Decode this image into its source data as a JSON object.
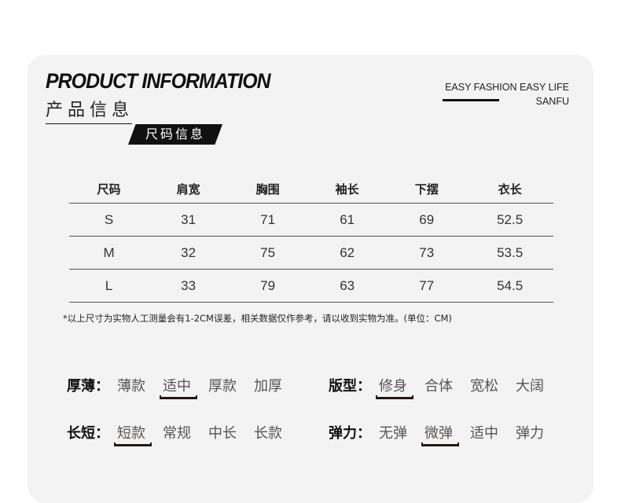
{
  "header": {
    "title_en": "PRODUCT INFORMATION",
    "title_cn": "产品信息",
    "section_tag": "尺码信息",
    "slogan_line1": "EASY FASHION EASY LIFE",
    "slogan_line2": "SANFU"
  },
  "size_table": {
    "columns": [
      "尺码",
      "肩宽",
      "胸围",
      "袖长",
      "下摆",
      "衣长"
    ],
    "rows": [
      [
        "S",
        "31",
        "71",
        "61",
        "69",
        "52.5"
      ],
      [
        "M",
        "32",
        "75",
        "62",
        "73",
        "53.5"
      ],
      [
        "L",
        "33",
        "79",
        "63",
        "77",
        "54.5"
      ]
    ]
  },
  "note": "*以上尺寸为实物人工测量会有1-2CM误差，相关数据仅作参考，请以收到实物为准。(单位：CM)",
  "attributes": [
    {
      "label": "厚薄：",
      "options": [
        "薄款",
        "适中",
        "厚款",
        "加厚"
      ],
      "selected": 1
    },
    {
      "label": "版型：",
      "options": [
        "修身",
        "合体",
        "宽松",
        "大阔"
      ],
      "selected": 0
    },
    {
      "label": "长短：",
      "options": [
        "短款",
        "常规",
        "中长",
        "长款"
      ],
      "selected": 0
    },
    {
      "label": "弹力：",
      "options": [
        "无弹",
        "微弹",
        "适中",
        "弹力"
      ],
      "selected": 1
    }
  ]
}
